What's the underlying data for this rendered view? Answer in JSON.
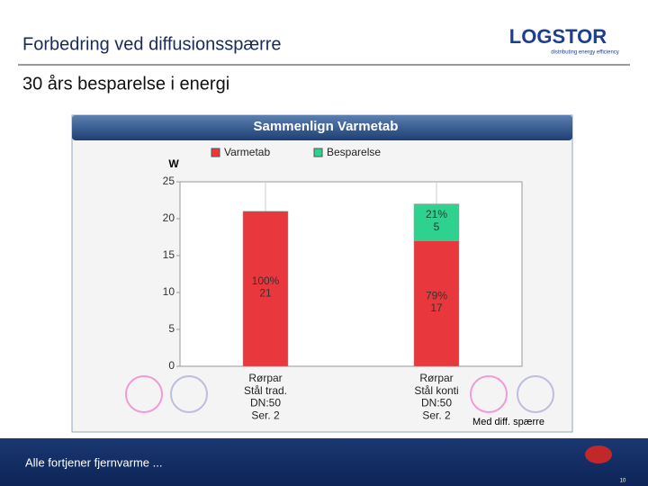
{
  "header": {
    "title": "Forbedring ved diffusionsspærre",
    "subtitle": "30 års besparelse i energi",
    "logo": "LOGSTOR",
    "tagline": "distributing energy efficiency"
  },
  "chart_data": {
    "type": "stacked-bar",
    "title": "Sammenlign Varmetab",
    "y_label": "W",
    "categories": [
      "Rørpar\nStål trad.\nDN:50\nSer. 2",
      "Rørpar\nStål konti\nDN:50\nSer. 2"
    ],
    "series": [
      {
        "name": "Varmetab",
        "color": "#e8383d",
        "values": [
          21,
          17
        ],
        "value_labels": [
          "100%\n21",
          "79%\n17"
        ]
      },
      {
        "name": "Besparelse",
        "color": "#2fd18e",
        "values": [
          null,
          5
        ],
        "value_labels": [
          null,
          "21%\n5"
        ]
      }
    ],
    "ylim": [
      0,
      25
    ],
    "yticks": [
      0,
      5,
      10,
      15,
      20,
      25
    ],
    "grid": true,
    "annotation": "Med diff. spærre"
  },
  "footer": {
    "text": "Alle fortjener fjernvarme ...",
    "page": "10"
  }
}
